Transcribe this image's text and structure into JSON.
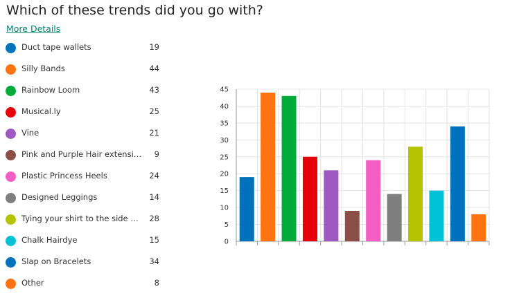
{
  "question": {
    "title": "Which of these trends did you go with?",
    "more_details_label": "More Details"
  },
  "legend": {
    "items": [
      {
        "label": "Duct tape wallets",
        "count": "19",
        "color": "#0072BC"
      },
      {
        "label": "Silly Bands",
        "count": "44",
        "color": "#FF7411"
      },
      {
        "label": "Rainbow Loom",
        "count": "43",
        "color": "#00AB3C"
      },
      {
        "label": "Musical.ly",
        "count": "25",
        "color": "#E6000A"
      },
      {
        "label": "Vine",
        "count": "21",
        "color": "#9E59C2"
      },
      {
        "label": "Pink and Purple Hair extension",
        "count": "9",
        "color": "#8B4F48"
      },
      {
        "label": "Plastic Princess Heels",
        "count": "24",
        "color": "#F25EC4"
      },
      {
        "label": "Designed Leggings",
        "count": "14",
        "color": "#7F7F7F"
      },
      {
        "label": "Tying your shirt to the side wit...",
        "count": "28",
        "color": "#B5C400"
      },
      {
        "label": "Chalk Hairdye",
        "count": "15",
        "color": "#00C2D6"
      },
      {
        "label": "Slap on Bracelets",
        "count": "34",
        "color": "#0072BC"
      },
      {
        "label": "Other",
        "count": "8",
        "color": "#FF7411"
      }
    ]
  },
  "chart_data": {
    "type": "bar",
    "categories": [
      "Duct tape wallets",
      "Silly Bands",
      "Rainbow Loom",
      "Musical.ly",
      "Vine",
      "Pink and Purple Hair extension",
      "Plastic Princess Heels",
      "Designed Leggings",
      "Tying your shirt to the side wit...",
      "Chalk Hairdye",
      "Slap on Bracelets",
      "Other"
    ],
    "values": [
      19,
      44,
      43,
      25,
      21,
      9,
      24,
      14,
      28,
      15,
      34,
      8
    ],
    "colors": [
      "#0072BC",
      "#FF7411",
      "#00AB3C",
      "#E6000A",
      "#9E59C2",
      "#8B4F48",
      "#F25EC4",
      "#7F7F7F",
      "#B5C400",
      "#00C2D6",
      "#0072BC",
      "#FF7411"
    ],
    "ylim": [
      0,
      45
    ],
    "yticks": [
      "0",
      "5",
      "10",
      "15",
      "20",
      "25",
      "30",
      "35",
      "40",
      "45"
    ],
    "grid": true,
    "legend_placement": "left"
  }
}
